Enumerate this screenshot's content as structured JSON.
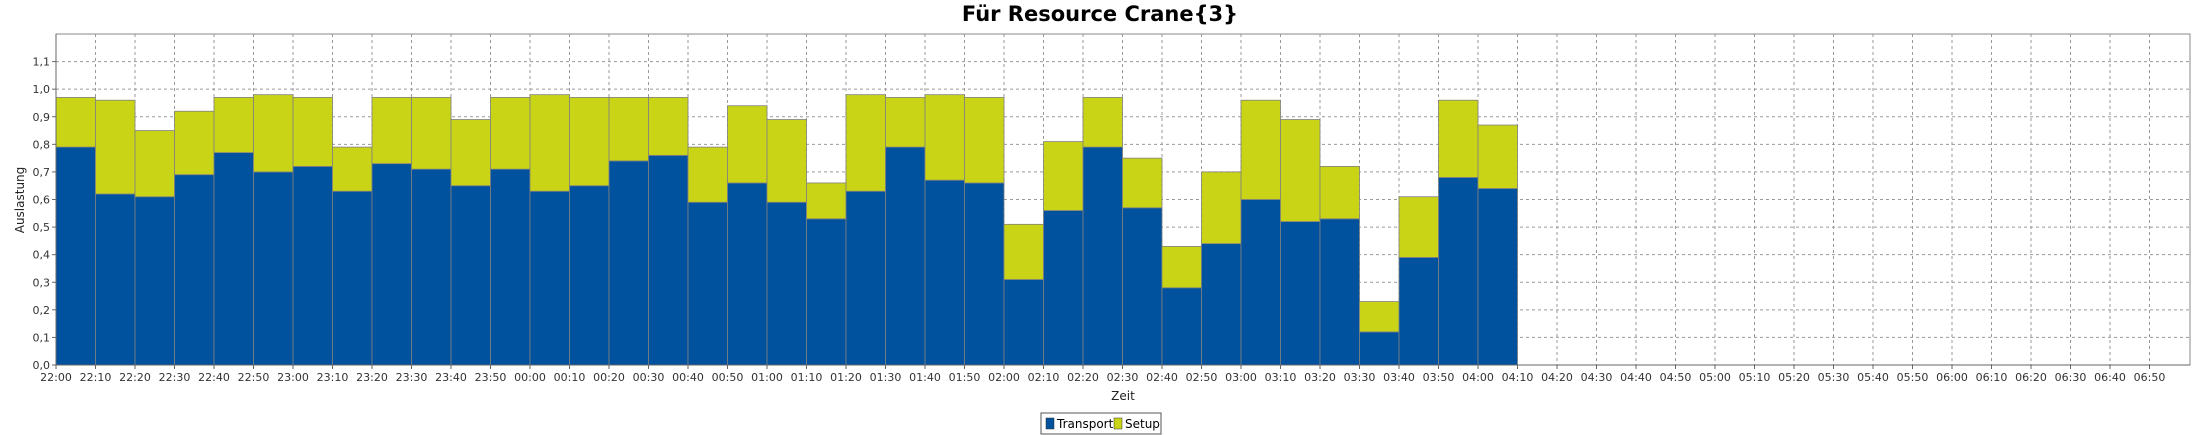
{
  "chart_data": {
    "type": "bar",
    "stacked": true,
    "title": "Für Resource Crane{3}",
    "xlabel": "Zeit",
    "ylabel": "Auslastung",
    "ylim": [
      0,
      1.2
    ],
    "yticks": [
      "0,0",
      "0,1",
      "0,2",
      "0,3",
      "0,4",
      "0,5",
      "0,6",
      "0,7",
      "0,8",
      "0,9",
      "1,0",
      "1,1"
    ],
    "grid": true,
    "legend_position": "bottom-center",
    "x_ticks": [
      "22:00",
      "22:10",
      "22:20",
      "22:30",
      "22:40",
      "22:50",
      "23:00",
      "23:10",
      "23:20",
      "23:30",
      "23:40",
      "23:50",
      "00:00",
      "00:10",
      "00:20",
      "00:30",
      "00:40",
      "00:50",
      "01:00",
      "01:10",
      "01:20",
      "01:30",
      "01:40",
      "01:50",
      "02:00",
      "02:10",
      "02:20",
      "02:30",
      "02:40",
      "02:50",
      "03:00",
      "03:10",
      "03:20",
      "03:30",
      "03:40",
      "03:50",
      "04:00",
      "04:10",
      "04:20",
      "04:30",
      "04:40",
      "04:50",
      "05:00",
      "05:10",
      "05:20",
      "05:30",
      "05:40",
      "05:50",
      "06:00",
      "06:10",
      "06:20",
      "06:30",
      "06:40",
      "06:50"
    ],
    "categories": [
      "22:00",
      "22:10",
      "22:20",
      "22:30",
      "22:40",
      "22:50",
      "23:00",
      "23:10",
      "23:20",
      "23:30",
      "23:40",
      "23:50",
      "00:00",
      "00:10",
      "00:20",
      "00:30",
      "00:40",
      "00:50",
      "01:00",
      "01:10",
      "01:20",
      "01:30",
      "01:40",
      "01:50",
      "02:00",
      "02:10",
      "02:20",
      "02:30",
      "02:40",
      "02:50",
      "03:00",
      "03:10",
      "03:20",
      "03:30",
      "03:40",
      "03:50",
      "04:00"
    ],
    "series": [
      {
        "name": "Transport",
        "color": "#00519e",
        "values": [
          0.79,
          0.62,
          0.61,
          0.69,
          0.77,
          0.7,
          0.72,
          0.63,
          0.73,
          0.71,
          0.65,
          0.71,
          0.63,
          0.65,
          0.74,
          0.76,
          0.59,
          0.66,
          0.59,
          0.53,
          0.63,
          0.79,
          0.67,
          0.66,
          0.31,
          0.56,
          0.79,
          0.57,
          0.28,
          0.44,
          0.6,
          0.52,
          0.53,
          0.12,
          0.39,
          0.68,
          0.64
        ]
      },
      {
        "name": "Setup",
        "color": "#c8d415",
        "values": [
          0.18,
          0.34,
          0.24,
          0.23,
          0.2,
          0.28,
          0.25,
          0.16,
          0.24,
          0.26,
          0.24,
          0.26,
          0.35,
          0.32,
          0.23,
          0.21,
          0.2,
          0.28,
          0.3,
          0.13,
          0.35,
          0.18,
          0.31,
          0.31,
          0.2,
          0.25,
          0.18,
          0.18,
          0.15,
          0.26,
          0.36,
          0.37,
          0.19,
          0.11,
          0.22,
          0.28,
          0.23
        ]
      }
    ]
  }
}
